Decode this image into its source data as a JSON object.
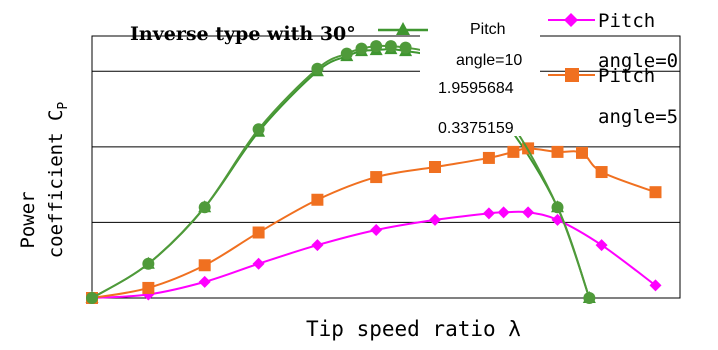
{
  "chart_data": {
    "type": "line",
    "title": "Inverse type with 30°",
    "xlabel": "Tip speed ratio λ",
    "ylabel_line1": "Power",
    "ylabel_line2": "coefficient C",
    "ylabel_sub": "P",
    "grid": true,
    "xlim": [
      0,
      12
    ],
    "ylim": [
      0,
      0.52
    ],
    "yticks": [
      0.15,
      0.3,
      0.45
    ],
    "legend": {
      "placement": "top-right",
      "cut_label_lines": [
        "Pitch",
        "angle=10",
        "1.9595684",
        "0.3375159"
      ]
    },
    "series": [
      {
        "name": "Pitch angle=10",
        "color": "#3f9630",
        "marker": "triangle",
        "x": [
          0,
          1.15,
          2.3,
          3.4,
          4.6,
          5.2,
          5.5,
          5.8,
          6.1,
          6.4,
          6.9,
          7.5,
          8.5,
          9.5,
          10.15
        ],
        "y": [
          0,
          0.068,
          0.18,
          0.33,
          0.45,
          0.48,
          0.49,
          0.492,
          0.494,
          0.49,
          0.48,
          0.44,
          0.34,
          0.18,
          0
        ]
      },
      {
        "name": "Pitch angle=0",
        "color": "#ff00ff",
        "marker": "diamond",
        "x": [
          0,
          1.15,
          2.3,
          3.4,
          4.6,
          5.8,
          7,
          8.1,
          8.4,
          8.9,
          9.5,
          10.4,
          11.5
        ],
        "y": [
          0,
          0.007,
          0.032,
          0.068,
          0.105,
          0.135,
          0.155,
          0.168,
          0.17,
          0.17,
          0.155,
          0.105,
          0.025
        ]
      },
      {
        "name": "Pitch angle=5",
        "color": "#f07020",
        "marker": "square",
        "x": [
          0,
          1.15,
          2.3,
          3.4,
          4.6,
          5.8,
          7,
          8.1,
          8.6,
          8.9,
          9.5,
          10,
          10.4,
          11.5
        ],
        "y": [
          0,
          0.02,
          0.065,
          0.13,
          0.195,
          0.24,
          0.26,
          0.278,
          0.29,
          0.297,
          0.29,
          0.288,
          0.25,
          0.21
        ]
      },
      {
        "name": "",
        "color": "#4f9a3a",
        "marker": "circle",
        "x": [
          0,
          1.15,
          2.3,
          3.4,
          4.6,
          5.2,
          5.5,
          5.8,
          6.1,
          6.4,
          6.9,
          7.5,
          8.5,
          9.5,
          10.15
        ],
        "y": [
          0,
          0.068,
          0.18,
          0.335,
          0.455,
          0.485,
          0.495,
          0.5,
          0.5,
          0.497,
          0.487,
          0.455,
          0.355,
          0.18,
          0
        ]
      }
    ]
  }
}
